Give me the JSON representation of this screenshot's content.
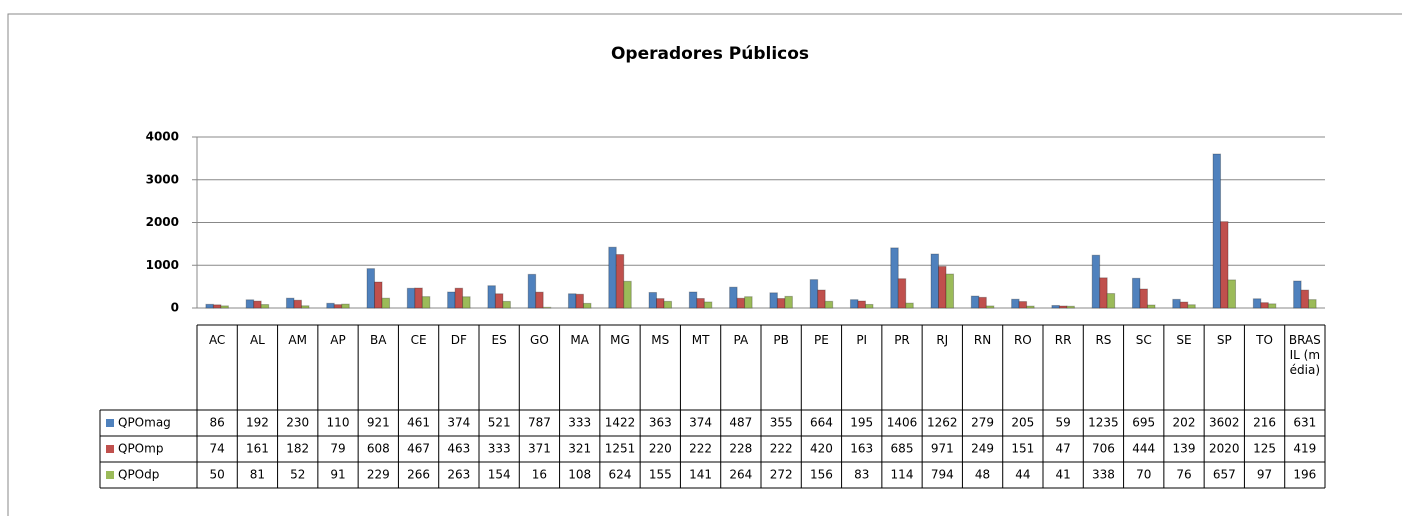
{
  "chart_data": {
    "type": "bar",
    "title": "Operadores Públicos",
    "categories": [
      "AC",
      "AL",
      "AM",
      "AP",
      "BA",
      "CE",
      "DF",
      "ES",
      "GO",
      "MA",
      "MG",
      "MS",
      "MT",
      "PA",
      "PB",
      "PE",
      "PI",
      "PR",
      "RJ",
      "RN",
      "RO",
      "RR",
      "RS",
      "SC",
      "SE",
      "SP",
      "TO",
      "BRASIL (média)"
    ],
    "series": [
      {
        "name": "QPOmag",
        "color": "#4f81bd",
        "values": [
          86,
          192,
          230,
          110,
          921,
          461,
          374,
          521,
          787,
          333,
          1422,
          363,
          374,
          487,
          355,
          664,
          195,
          1406,
          1262,
          279,
          205,
          59,
          1235,
          695,
          202,
          3602,
          216,
          631
        ]
      },
      {
        "name": "QPOmp",
        "color": "#c0504d",
        "values": [
          74,
          161,
          182,
          79,
          608,
          467,
          463,
          333,
          371,
          321,
          1251,
          220,
          222,
          228,
          222,
          420,
          163,
          685,
          971,
          249,
          151,
          47,
          706,
          444,
          139,
          2020,
          125,
          419
        ]
      },
      {
        "name": "QPOdp",
        "color": "#9bbb59",
        "values": [
          50,
          81,
          52,
          91,
          229,
          266,
          263,
          154,
          16,
          108,
          624,
          155,
          141,
          264,
          272,
          156,
          83,
          114,
          794,
          48,
          44,
          41,
          338,
          70,
          76,
          657,
          97,
          196
        ]
      }
    ],
    "ylim": [
      0,
      4000
    ],
    "yticks": [
      0,
      1000,
      2000,
      3000,
      4000
    ],
    "grid": true,
    "legend": "data-table"
  }
}
